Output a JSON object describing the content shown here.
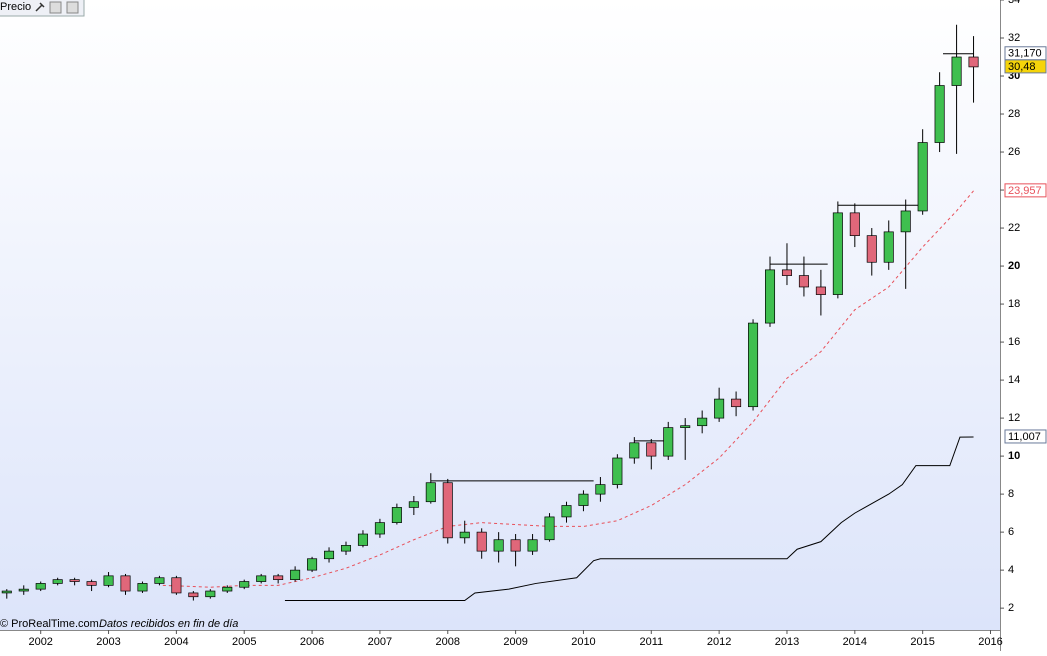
{
  "chart_data": {
    "type": "candlestick",
    "title": "Precio",
    "footer": "© ProRealTime.com",
    "footer_note": "Datos recibidos en fin de día",
    "x": [
      2001.5,
      2001.75,
      2002,
      2002.25,
      2002.5,
      2002.75,
      2003,
      2003.25,
      2003.5,
      2003.75,
      2004,
      2004.25,
      2004.5,
      2004.75,
      2005,
      2005.25,
      2005.5,
      2005.75,
      2006,
      2006.25,
      2006.5,
      2006.75,
      2007,
      2007.25,
      2007.5,
      2007.75,
      2008,
      2008.25,
      2008.5,
      2008.75,
      2009,
      2009.25,
      2009.5,
      2009.75,
      2010,
      2010.25,
      2010.5,
      2010.75,
      2011,
      2011.25,
      2011.5,
      2011.75,
      2012,
      2012.25,
      2012.5,
      2012.75,
      2013,
      2013.25,
      2013.5,
      2013.75,
      2014,
      2014.25,
      2014.5,
      2014.75,
      2015,
      2015.25,
      2015.5,
      2015.75
    ],
    "open": [
      2.8,
      2.9,
      3.0,
      3.3,
      3.5,
      3.4,
      3.2,
      3.7,
      2.9,
      3.3,
      3.6,
      2.8,
      2.6,
      2.9,
      3.1,
      3.4,
      3.7,
      3.5,
      4.0,
      4.6,
      5.0,
      5.3,
      5.9,
      6.5,
      7.3,
      7.6,
      8.6,
      5.7,
      6.0,
      5.0,
      5.6,
      5.0,
      5.6,
      6.8,
      7.4,
      8.0,
      8.5,
      9.9,
      10.7,
      10.0,
      11.5,
      11.6,
      12.0,
      13.0,
      12.6,
      17.0,
      19.8,
      19.5,
      18.9,
      18.5,
      22.8,
      21.6,
      20.2,
      21.8,
      22.9,
      26.5,
      29.5,
      31.0
    ],
    "high": [
      3.0,
      3.2,
      3.4,
      3.6,
      3.6,
      3.5,
      3.9,
      3.8,
      3.4,
      3.7,
      3.7,
      2.9,
      3.0,
      3.2,
      3.5,
      3.8,
      3.8,
      4.2,
      4.7,
      5.2,
      5.5,
      6.1,
      6.7,
      7.5,
      7.9,
      9.1,
      8.8,
      6.6,
      6.2,
      6.0,
      5.9,
      5.9,
      7.0,
      7.6,
      8.2,
      8.9,
      10.1,
      11.0,
      10.9,
      11.8,
      12.0,
      12.4,
      13.6,
      13.4,
      17.2,
      20.5,
      21.2,
      20.5,
      19.8,
      23.4,
      23.3,
      22.0,
      22.4,
      23.5,
      27.2,
      30.2,
      32.7,
      32.1
    ],
    "low": [
      2.5,
      2.7,
      2.9,
      3.2,
      3.2,
      2.9,
      3.1,
      2.7,
      2.8,
      3.2,
      2.7,
      2.4,
      2.5,
      2.8,
      3.0,
      3.3,
      3.3,
      3.4,
      3.9,
      4.4,
      4.8,
      5.2,
      5.7,
      6.4,
      6.9,
      7.5,
      5.4,
      5.4,
      4.6,
      4.4,
      4.2,
      4.8,
      5.5,
      6.5,
      7.1,
      7.6,
      8.3,
      9.6,
      9.3,
      9.8,
      9.8,
      11.2,
      11.8,
      12.1,
      12.4,
      16.8,
      19.0,
      18.4,
      17.4,
      18.3,
      21.0,
      19.5,
      19.8,
      18.8,
      22.7,
      26.0,
      25.9,
      28.6
    ],
    "close": [
      2.9,
      3.0,
      3.3,
      3.5,
      3.4,
      3.2,
      3.7,
      2.9,
      3.3,
      3.6,
      2.8,
      2.6,
      2.9,
      3.1,
      3.4,
      3.7,
      3.5,
      4.0,
      4.6,
      5.0,
      5.3,
      5.9,
      6.5,
      7.3,
      7.6,
      8.6,
      5.7,
      6.0,
      5.0,
      5.6,
      5.0,
      5.6,
      6.8,
      7.4,
      8.0,
      8.5,
      9.9,
      10.7,
      10.0,
      11.5,
      11.6,
      12.0,
      13.0,
      12.6,
      17.0,
      19.8,
      19.5,
      18.9,
      18.5,
      22.8,
      21.6,
      20.2,
      21.8,
      22.9,
      26.5,
      29.5,
      31.0,
      30.48
    ],
    "up_color": "#3fbf4f",
    "down_color": "#e0677a",
    "ma": {
      "color": "#e8505a",
      "x": [
        2003.8,
        2004.5,
        2005,
        2005.5,
        2006,
        2006.5,
        2007,
        2007.5,
        2008,
        2008.5,
        2009,
        2009.5,
        2010,
        2010.5,
        2011,
        2011.5,
        2012,
        2012.5,
        2013,
        2013.5,
        2014,
        2014.5,
        2015,
        2015.5,
        2015.75
      ],
      "values": [
        3.2,
        3.1,
        3.2,
        3.2,
        3.6,
        4.1,
        4.8,
        5.6,
        6.3,
        6.5,
        6.4,
        6.3,
        6.3,
        6.6,
        7.4,
        8.5,
        9.9,
        11.8,
        14.1,
        15.5,
        17.7,
        18.9,
        21.0,
        22.9,
        23.957
      ]
    },
    "stop": {
      "color": "#000000",
      "x": [
        2005.6,
        2008.25,
        2008.4,
        2008.9,
        2009.3,
        2009.9,
        2010.15,
        2010.25,
        2013,
        2013.15,
        2013.5,
        2013.8,
        2014,
        2014.3,
        2014.5,
        2014.7,
        2014.9,
        2015.4,
        2015.55,
        2015.75
      ],
      "values": [
        2.4,
        2.4,
        2.8,
        3.0,
        3.3,
        3.6,
        4.5,
        4.6,
        4.6,
        5.1,
        5.5,
        6.5,
        7.0,
        7.6,
        8.0,
        8.5,
        9.5,
        9.5,
        11.0,
        11.007
      ]
    },
    "levels": [
      {
        "x": [
          2007.75,
          2010.15
        ],
        "value": 8.7
      },
      {
        "x": [
          2010.75,
          2011.2
        ],
        "value": 10.8
      },
      {
        "x": [
          2012.75,
          2013.6
        ],
        "value": 20.1
      },
      {
        "x": [
          2013.75,
          2014.95
        ],
        "value": 23.2
      },
      {
        "x": [
          2015.3,
          2015.75
        ],
        "value": 31.17
      }
    ],
    "price_labels": [
      {
        "value": 31.17,
        "label": "31,170",
        "color": "#000000",
        "background": "#ffffff"
      },
      {
        "value": 30.48,
        "label": "30,48",
        "color": "#000000",
        "background": "#f5d40a"
      },
      {
        "value": 23.957,
        "label": "23,957",
        "color": "#e8505a",
        "background": "#ffffff"
      },
      {
        "value": 11.007,
        "label": "11,007",
        "color": "#000000",
        "background": "#ffffff"
      }
    ],
    "xlim": [
      2001.4,
      2016.14
    ],
    "xticks": [
      2002,
      2003,
      2004,
      2005,
      2006,
      2007,
      2008,
      2009,
      2010,
      2011,
      2012,
      2013,
      2014,
      2015,
      2016
    ],
    "ylim": [
      0.85,
      34
    ],
    "yticks": [
      2,
      4,
      6,
      8,
      10,
      12,
      14,
      16,
      18,
      20,
      22,
      24,
      26,
      28,
      30,
      32,
      34
    ],
    "bold_yticks": [
      10,
      20,
      30
    ]
  }
}
